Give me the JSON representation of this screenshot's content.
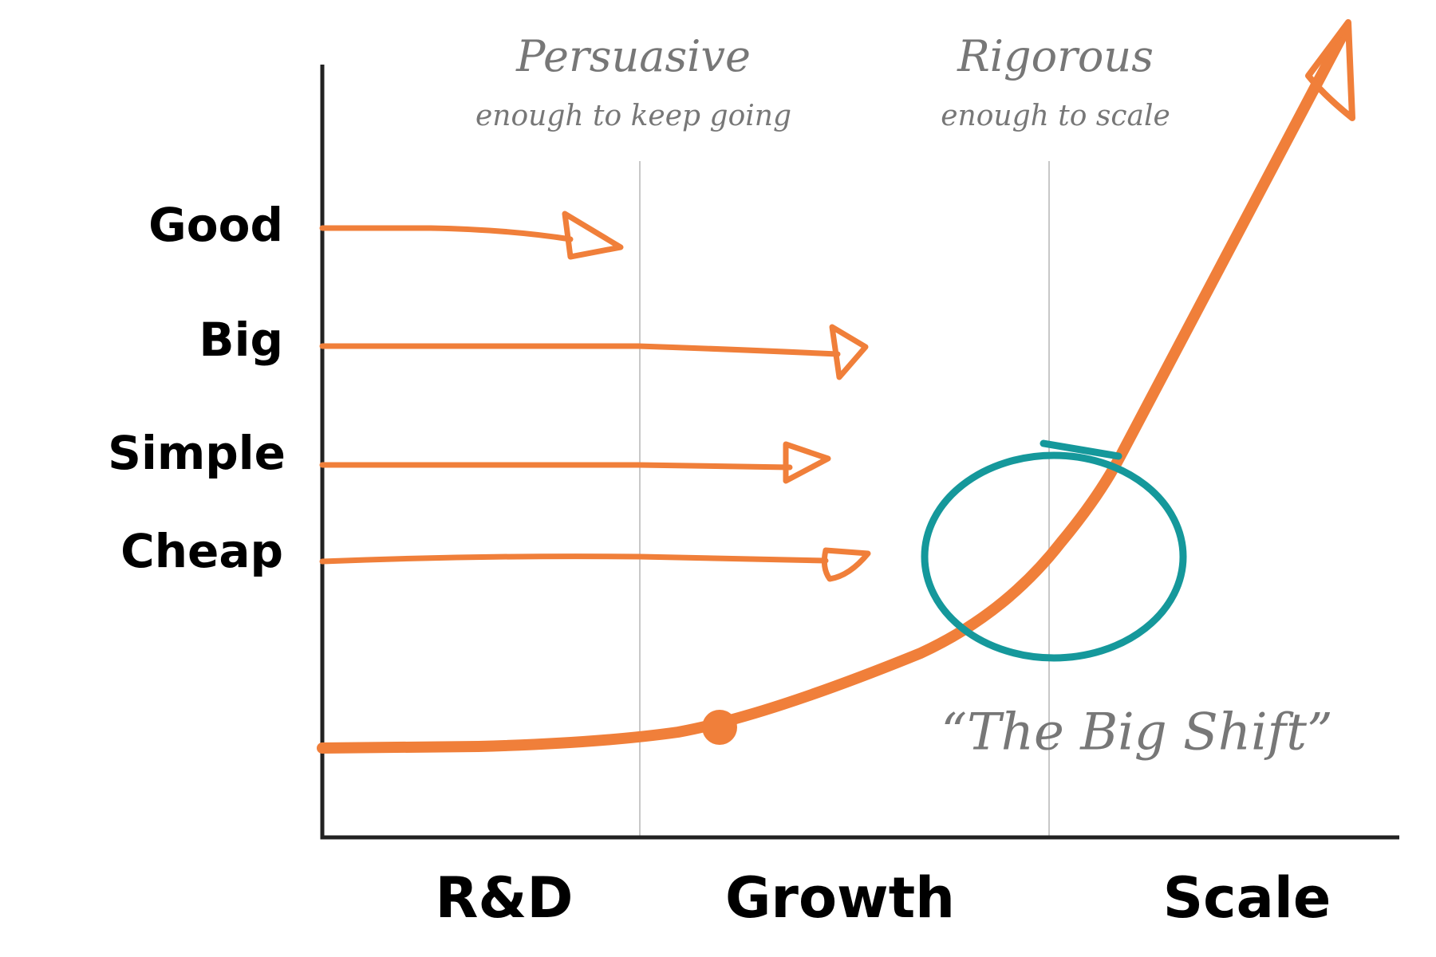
{
  "labels": {
    "left": [
      "Good",
      "Big",
      "Simple",
      "Cheap"
    ],
    "bottom": [
      "R&D",
      "Growth",
      "Scale"
    ]
  },
  "annotations": {
    "persuasive": {
      "title": "Persuasive",
      "subtitle": "enough to keep going"
    },
    "rigorous": {
      "title": "Rigorous",
      "subtitle": "enough to scale"
    },
    "shift": "“The Big Shift”"
  }
}
